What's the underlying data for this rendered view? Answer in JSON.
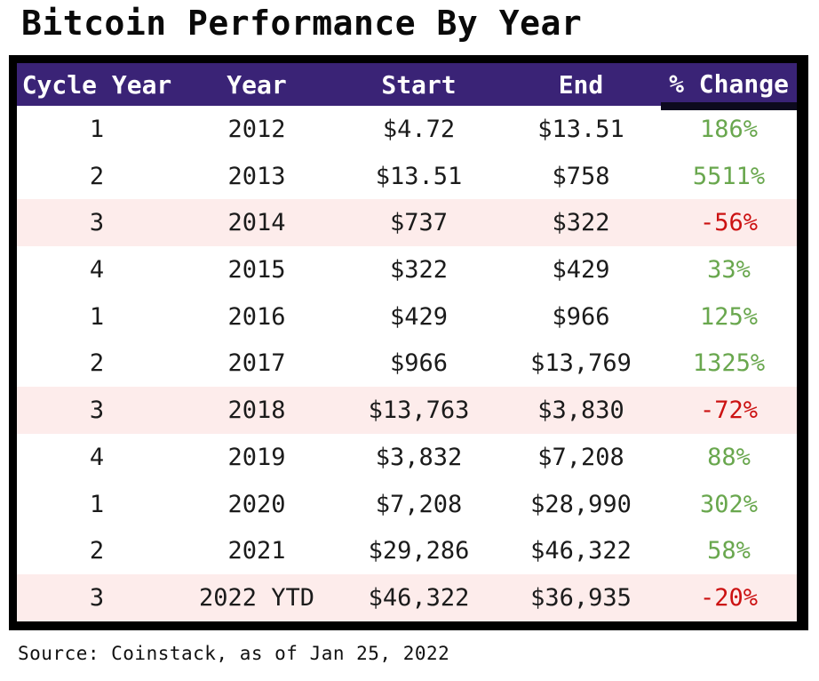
{
  "page": {
    "title": "Bitcoin Performance By Year",
    "source_note": "Source: Coinstack, as of Jan 25, 2022"
  },
  "colors": {
    "header_bg": "#3a2376",
    "header_text": "#ffffff",
    "positive_text": "#69a74e",
    "negative_text": "#cc1212",
    "highlight_row_bg": "#fdeceb",
    "table_border": "#000000"
  },
  "chart_data": {
    "type": "table",
    "title": "Bitcoin Performance By Year",
    "columns": [
      "Cycle Year",
      "Year",
      "Start",
      "End",
      "% Change"
    ],
    "rows": [
      {
        "cycle_year": "1",
        "year": "2012",
        "start": "$4.72",
        "end": "$13.51",
        "pct_change": "186%",
        "trend": "positive",
        "highlighted": false
      },
      {
        "cycle_year": "2",
        "year": "2013",
        "start": "$13.51",
        "end": "$758",
        "pct_change": "5511%",
        "trend": "positive",
        "highlighted": false
      },
      {
        "cycle_year": "3",
        "year": "2014",
        "start": "$737",
        "end": "$322",
        "pct_change": "-56%",
        "trend": "negative",
        "highlighted": true
      },
      {
        "cycle_year": "4",
        "year": "2015",
        "start": "$322",
        "end": "$429",
        "pct_change": "33%",
        "trend": "positive",
        "highlighted": false
      },
      {
        "cycle_year": "1",
        "year": "2016",
        "start": "$429",
        "end": "$966",
        "pct_change": "125%",
        "trend": "positive",
        "highlighted": false
      },
      {
        "cycle_year": "2",
        "year": "2017",
        "start": "$966",
        "end": "$13,769",
        "pct_change": "1325%",
        "trend": "positive",
        "highlighted": false
      },
      {
        "cycle_year": "3",
        "year": "2018",
        "start": "$13,763",
        "end": "$3,830",
        "pct_change": "-72%",
        "trend": "negative",
        "highlighted": true
      },
      {
        "cycle_year": "4",
        "year": "2019",
        "start": "$3,832",
        "end": "$7,208",
        "pct_change": "88%",
        "trend": "positive",
        "highlighted": false
      },
      {
        "cycle_year": "1",
        "year": "2020",
        "start": "$7,208",
        "end": "$28,990",
        "pct_change": "302%",
        "trend": "positive",
        "highlighted": false
      },
      {
        "cycle_year": "2",
        "year": "2021",
        "start": "$29,286",
        "end": "$46,322",
        "pct_change": "58%",
        "trend": "positive",
        "highlighted": false
      },
      {
        "cycle_year": "3",
        "year": "2022 YTD",
        "start": "$46,322",
        "end": "$36,935",
        "pct_change": "-20%",
        "trend": "negative",
        "highlighted": true
      }
    ],
    "source": "Source: Coinstack, as of Jan 25, 2022"
  }
}
